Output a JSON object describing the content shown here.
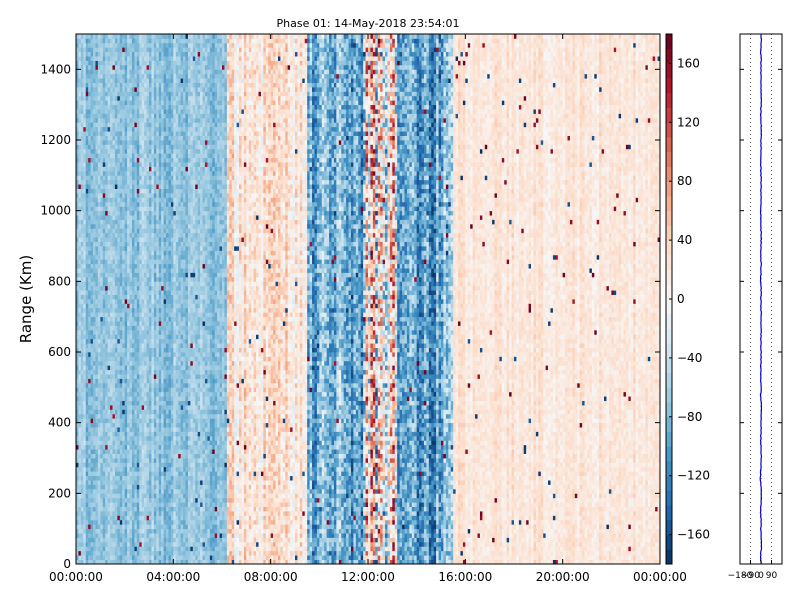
{
  "chart_data": [
    {
      "type": "heatmap",
      "title": "Phase 01: 14-May-2018 23:54:01",
      "xlabel": "",
      "ylabel": "Range (Km)",
      "xlim_hours": [
        0,
        24
      ],
      "ylim": [
        0,
        1500
      ],
      "x_ticks": [
        "00:00:00",
        "04:00:00",
        "08:00:00",
        "12:00:00",
        "16:00:00",
        "20:00:00",
        "00:00:00"
      ],
      "x_tick_hours": [
        0,
        4,
        8,
        12,
        16,
        20,
        24
      ],
      "y_ticks": [
        0,
        200,
        400,
        600,
        800,
        1000,
        1200,
        1400
      ],
      "time_bins": 240,
      "range_bins": 120,
      "colormap": "RdBu_r",
      "clim": [
        -180,
        180
      ],
      "colorbar_ticks": [
        160,
        120,
        80,
        40,
        0,
        -40,
        -80,
        -120,
        -160
      ],
      "colorbar_labels": [
        "160",
        "120",
        "80",
        "40",
        "0",
        "−40",
        "−80",
        "−120",
        "−160"
      ],
      "phase_pattern": [
        {
          "from_hour": 0.0,
          "to_hour": 6.2,
          "mean_phase": -70,
          "spread": 35
        },
        {
          "from_hour": 6.2,
          "to_hour": 9.5,
          "mean_phase": 25,
          "spread": 60
        },
        {
          "from_hour": 9.5,
          "to_hour": 11.8,
          "mean_phase": -90,
          "spread": 90
        },
        {
          "from_hour": 11.8,
          "to_hour": 13.2,
          "mean_phase": 0,
          "spread": 180
        },
        {
          "from_hour": 13.2,
          "to_hour": 15.5,
          "mean_phase": -90,
          "spread": 90
        },
        {
          "from_hour": 15.5,
          "to_hour": 24.0,
          "mean_phase": 22,
          "spread": 28
        }
      ]
    },
    {
      "type": "line",
      "title": "",
      "xlim": [
        -180,
        180
      ],
      "ylim": [
        0,
        1500
      ],
      "x_ticks": [
        -180,
        -90,
        0,
        90
      ],
      "x_tick_labels": [
        "−180",
        "−90",
        "0",
        "90"
      ],
      "color": "#0000cc",
      "profile": [
        [
          0,
          0
        ],
        [
          25,
          -3
        ],
        [
          50,
          4
        ],
        [
          75,
          2
        ],
        [
          100,
          -2
        ],
        [
          125,
          0
        ],
        [
          150,
          -4
        ],
        [
          175,
          3
        ],
        [
          200,
          1
        ],
        [
          225,
          -2
        ],
        [
          250,
          -5
        ],
        [
          275,
          1
        ],
        [
          300,
          3
        ],
        [
          325,
          0
        ],
        [
          350,
          -2
        ],
        [
          375,
          2
        ],
        [
          400,
          -1
        ],
        [
          425,
          0
        ],
        [
          450,
          2
        ],
        [
          475,
          -3
        ],
        [
          500,
          1
        ],
        [
          525,
          -2
        ],
        [
          550,
          -1
        ],
        [
          575,
          0
        ],
        [
          600,
          2
        ],
        [
          625,
          -1
        ],
        [
          650,
          1
        ],
        [
          675,
          0
        ],
        [
          700,
          2
        ],
        [
          725,
          -1
        ],
        [
          750,
          0
        ],
        [
          775,
          1
        ],
        [
          800,
          -2
        ],
        [
          825,
          0
        ],
        [
          850,
          1
        ],
        [
          875,
          -1
        ],
        [
          900,
          0
        ],
        [
          925,
          2
        ],
        [
          950,
          -1
        ],
        [
          975,
          0
        ],
        [
          1000,
          -2
        ],
        [
          1025,
          1
        ],
        [
          1050,
          0
        ],
        [
          1075,
          2
        ],
        [
          1100,
          0
        ],
        [
          1125,
          -1
        ],
        [
          1150,
          1
        ],
        [
          1175,
          0
        ],
        [
          1200,
          -1
        ],
        [
          1225,
          2
        ],
        [
          1250,
          0
        ],
        [
          1275,
          -2
        ],
        [
          1300,
          1
        ],
        [
          1325,
          0
        ],
        [
          1350,
          2
        ],
        [
          1375,
          -1
        ],
        [
          1400,
          0
        ],
        [
          1425,
          1
        ],
        [
          1450,
          -2
        ],
        [
          1475,
          2
        ],
        [
          1500,
          0
        ]
      ]
    }
  ]
}
